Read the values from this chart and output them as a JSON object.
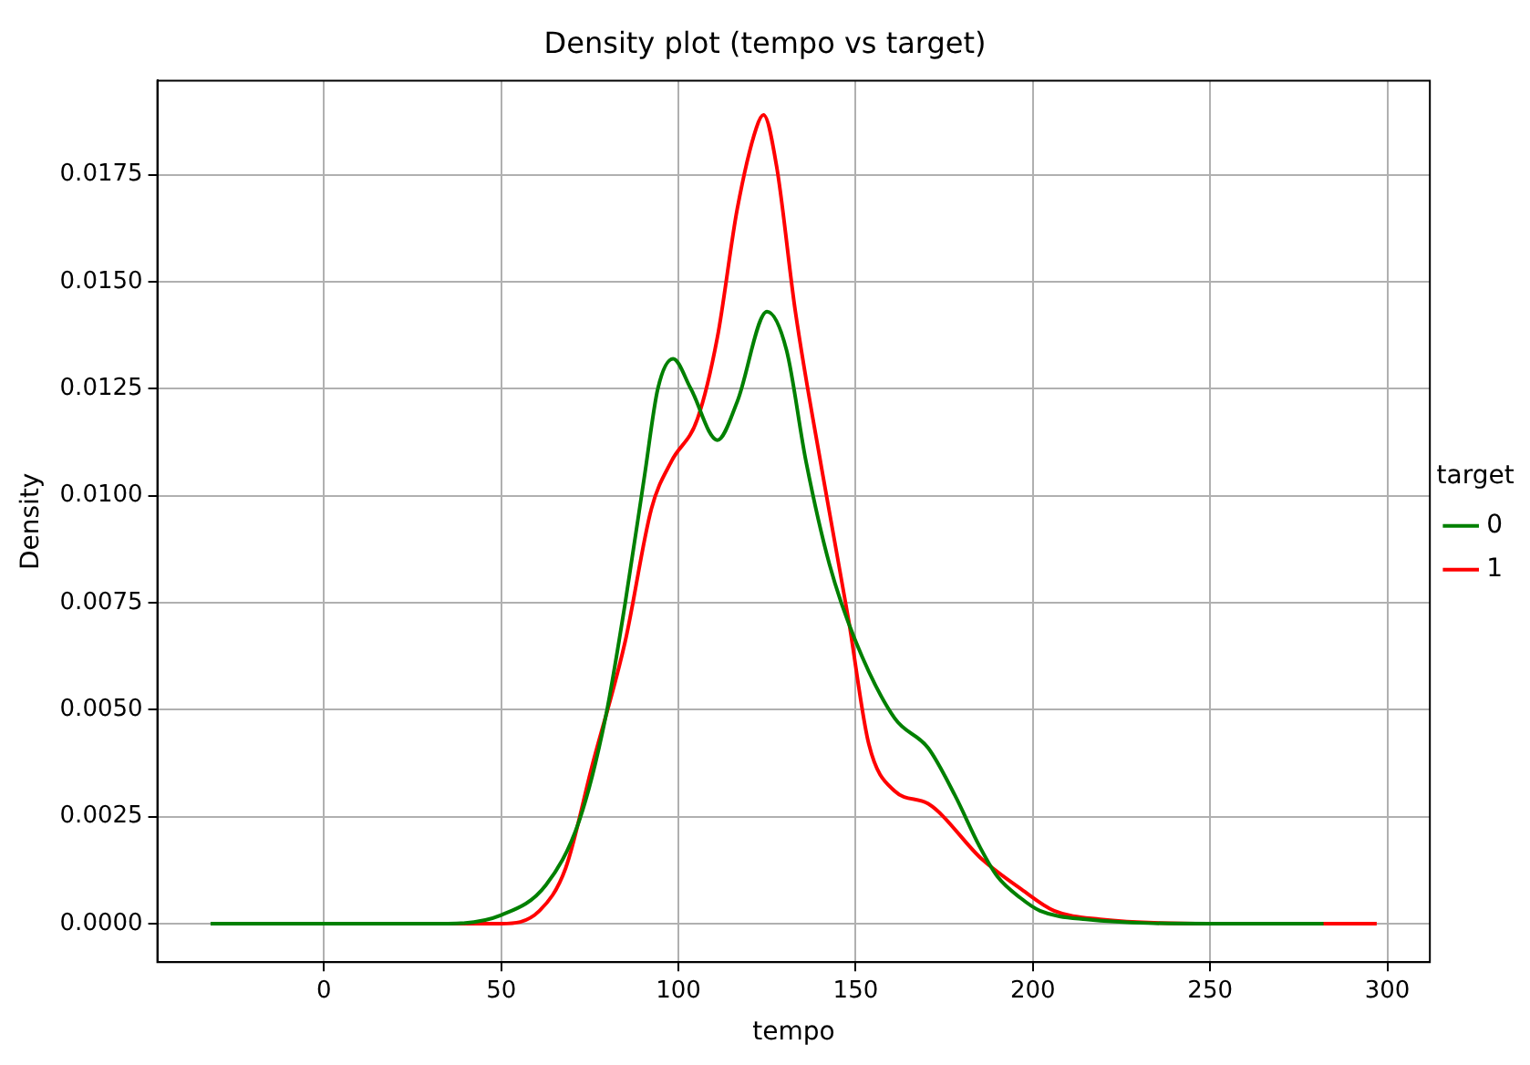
{
  "chart_data": {
    "type": "line",
    "title": "Density plot (tempo vs target)",
    "xlabel": "tempo",
    "ylabel": "Density",
    "legend_title": "target",
    "legend": "right",
    "grid": true,
    "marker": "none",
    "line_style": "solid",
    "xlim": [
      -47,
      312
    ],
    "xticks": [
      0,
      50,
      100,
      150,
      200,
      250,
      300
    ],
    "ylim": [
      -0.0009,
      0.0197
    ],
    "yticks": [
      {
        "value": 0,
        "label": "0.0000"
      },
      {
        "value": 0.0025,
        "label": "0.0025"
      },
      {
        "value": 0.005,
        "label": "0.0050"
      },
      {
        "value": 0.0075,
        "label": "0.0075"
      },
      {
        "value": 0.01,
        "label": "0.0100"
      },
      {
        "value": 0.0125,
        "label": "0.0125"
      },
      {
        "value": 0.015,
        "label": "0.0150"
      },
      {
        "value": 0.0175,
        "label": "0.0175"
      }
    ],
    "series": [
      {
        "name": "0",
        "color": "#008000",
        "x": [
          -32,
          0,
          35,
          50,
          62.6,
          72,
          79.4,
          85,
          90.5,
          94.2,
          98.5,
          103.5,
          111,
          116.6,
          125,
          130.5,
          136,
          142.6,
          150,
          161,
          170.5,
          178,
          185,
          190,
          196.5,
          202,
          215,
          250,
          282
        ],
        "values": [
          0,
          0,
          0,
          0.0002,
          0.0009,
          0.0024,
          0.0048,
          0.0075,
          0.0105,
          0.0125,
          0.0132,
          0.0125,
          0.0113,
          0.0122,
          0.0143,
          0.0134,
          0.0108,
          0.0084,
          0.0066,
          0.0048,
          0.0041,
          0.003,
          0.0018,
          0.0011,
          0.0006,
          0.0003,
          0.0001,
          0,
          0
        ]
      },
      {
        "name": "1",
        "color": "#ff0000",
        "x": [
          -14.5,
          0,
          29,
          50,
          60.8,
          68.2,
          75.7,
          85,
          92.4,
          98,
          105.4,
          111,
          116.6,
          122,
          124,
          127.7,
          133,
          140.7,
          148,
          153.7,
          161,
          170.5,
          185.7,
          196.8,
          206,
          219,
          250,
          297
        ],
        "values": [
          0,
          0,
          0,
          0,
          0.0003,
          0.0013,
          0.0037,
          0.0066,
          0.0097,
          0.0108,
          0.0118,
          0.0137,
          0.0167,
          0.0186,
          0.0189,
          0.0177,
          0.0143,
          0.0105,
          0.0071,
          0.0042,
          0.0031,
          0.0028,
          0.0015,
          0.0008,
          0.0003,
          0.0001,
          0,
          0
        ]
      }
    ]
  }
}
